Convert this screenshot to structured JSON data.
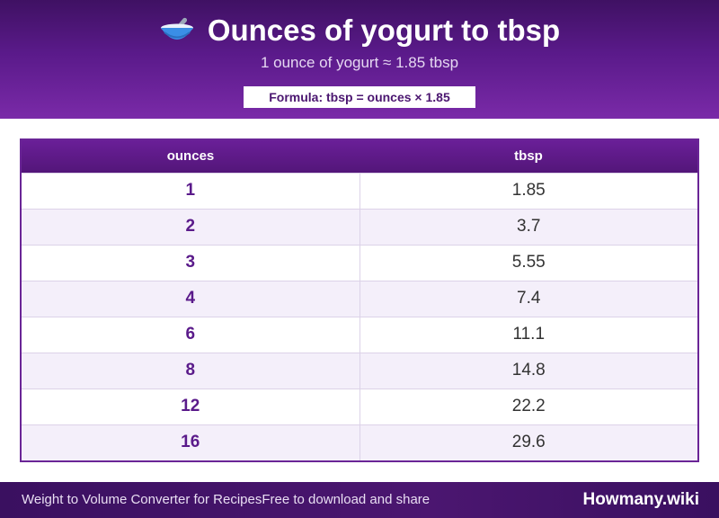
{
  "header": {
    "icon": "bowl-with-spoon-icon",
    "title": "Ounces of yogurt to tbsp",
    "subtitle": "1 ounce of yogurt ≈ 1.85 tbsp",
    "formula": "Formula: tbsp = ounces × 1.85"
  },
  "table": {
    "columns": [
      "ounces",
      "tbsp"
    ],
    "rows": [
      [
        "1",
        "1.85"
      ],
      [
        "2",
        "3.7"
      ],
      [
        "3",
        "5.55"
      ],
      [
        "4",
        "7.4"
      ],
      [
        "6",
        "11.1"
      ],
      [
        "8",
        "14.8"
      ],
      [
        "12",
        "22.2"
      ],
      [
        "16",
        "29.6"
      ]
    ]
  },
  "footer": {
    "left_text": "Weight to Volume Converter for Recipes",
    "middle_text": "Free to download and share",
    "brand": "Howmany.wiki"
  },
  "colors": {
    "header_dark": "#3f1163",
    "header_light": "#7a2aa8",
    "accent": "#5a1a8a",
    "row_alt": "#f4effa"
  }
}
